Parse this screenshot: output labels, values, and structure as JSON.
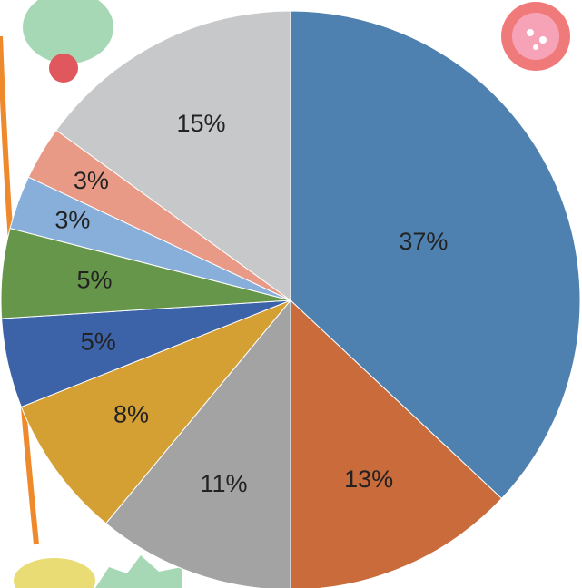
{
  "chart_data": {
    "type": "pie",
    "values": [
      37,
      13,
      11,
      8,
      5,
      5,
      3,
      3,
      15
    ],
    "value_labels": [
      "37%",
      "13%",
      "11%",
      "8%",
      "5%",
      "5%",
      "3%",
      "3%",
      "15%"
    ],
    "colors": [
      "#4f81b0",
      "#c96b3a",
      "#a3a3a3",
      "#d49f33",
      "#3c62a8",
      "#65964a",
      "#87afd9",
      "#e89a87",
      "#c7c8ca"
    ]
  }
}
